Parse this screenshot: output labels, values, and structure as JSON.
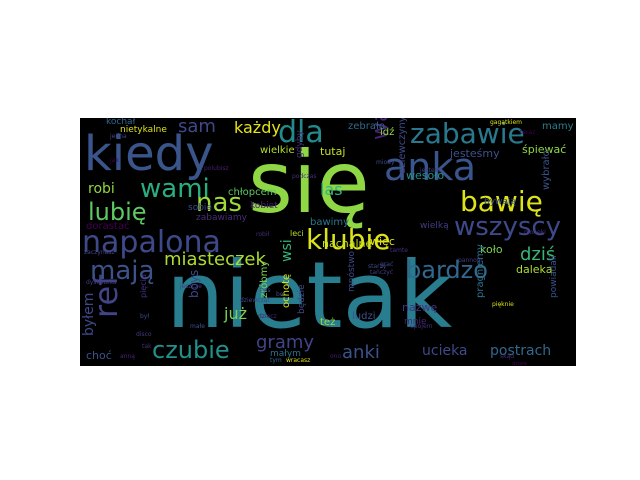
{
  "words": [
    {
      "text": "się",
      "color": "#8fd744"
    },
    {
      "text": "nietak",
      "color": "#287d8e"
    },
    {
      "text": "kiedy",
      "color": "#3a548c"
    },
    {
      "text": "napalona",
      "color": "#3e4989"
    },
    {
      "text": "anka",
      "color": "#3a548c"
    },
    {
      "text": "zabawie",
      "color": "#2a788e"
    },
    {
      "text": "dla",
      "color": "#238a8d"
    },
    {
      "text": "wami",
      "color": "#29af7f"
    },
    {
      "text": "bawię",
      "color": "#dde318"
    },
    {
      "text": "klubie",
      "color": "#dce319"
    },
    {
      "text": "wszyscy",
      "color": "#3e4989"
    },
    {
      "text": "lubię",
      "color": "#5ec962"
    },
    {
      "text": "nas",
      "color": "#a0da39"
    },
    {
      "text": "ref",
      "color": "#414487"
    },
    {
      "text": "mają",
      "color": "#3b528b"
    },
    {
      "text": "miasteczek",
      "color": "#addc30"
    },
    {
      "text": "was",
      "color": "#482475"
    },
    {
      "text": "bardzo",
      "color": "#31688e"
    },
    {
      "text": "czubie",
      "color": "#21918c"
    },
    {
      "text": "sam",
      "color": "#3e4989"
    },
    {
      "text": "każdy",
      "color": "#e5e419"
    },
    {
      "text": "robi",
      "color": "#8fd744"
    },
    {
      "text": "las",
      "color": "#31b57b"
    },
    {
      "text": "chłopcem",
      "color": "#5ec962"
    },
    {
      "text": "dziś",
      "color": "#35b779"
    },
    {
      "text": "byłem",
      "color": "#3e4989"
    },
    {
      "text": "już",
      "color": "#7ad151"
    },
    {
      "text": "gramy",
      "color": "#414487"
    },
    {
      "text": "anki",
      "color": "#3b528b"
    },
    {
      "text": "ucieka",
      "color": "#3e4989"
    },
    {
      "text": "postrach",
      "color": "#31688e"
    },
    {
      "text": "nachalne",
      "color": "#c2df23"
    },
    {
      "text": "wielkie",
      "color": "#b5de2b"
    },
    {
      "text": "tutaj",
      "color": "#c8e020"
    },
    {
      "text": "jesteśmy",
      "color": "#3b528b"
    },
    {
      "text": "śpiewać",
      "color": "#8fd744"
    },
    {
      "text": "mamy",
      "color": "#277f8e"
    },
    {
      "text": "wesoło",
      "color": "#21918c"
    },
    {
      "text": "więc",
      "color": "#dde318"
    },
    {
      "text": "koło",
      "color": "#7ad151"
    },
    {
      "text": "nazwę",
      "color": "#46327e"
    },
    {
      "text": "daleka",
      "color": "#addc30"
    },
    {
      "text": "wsi",
      "color": "#35b779"
    },
    {
      "text": "boys",
      "color": "#3e4989"
    },
    {
      "text": "choć",
      "color": "#3b528b"
    },
    {
      "text": "nietykalne",
      "color": "#dde318"
    },
    {
      "text": "kochał",
      "color": "#31688e"
    },
    {
      "text": "dorastać",
      "color": "#440154"
    },
    {
      "text": "bawimy",
      "color": "#2a788e"
    },
    {
      "text": "kobiet",
      "color": "#481f70"
    },
    {
      "text": "bywają",
      "color": "#3b528b"
    },
    {
      "text": "wielką",
      "color": "#433d84"
    },
    {
      "text": "zabawiamy",
      "color": "#472d7b"
    },
    {
      "text": "sobie",
      "color": "#3e4989"
    },
    {
      "text": "zebrało",
      "color": "#31688e"
    },
    {
      "text": "idź",
      "color": "#8fd744"
    },
    {
      "text": "dziewczyny",
      "color": "#3e4989"
    },
    {
      "text": "wybrało",
      "color": "#3b528b"
    },
    {
      "text": "gdyby",
      "color": "#472d7b"
    },
    {
      "text": "zróbmy",
      "color": "#7ad151"
    },
    {
      "text": "ochotę",
      "color": "#d8e219"
    },
    {
      "text": "będzie",
      "color": "#3e4989"
    },
    {
      "text": "ludzi",
      "color": "#3b528b"
    },
    {
      "text": "mnóstwo",
      "color": "#3e4989"
    },
    {
      "text": "pragniemy",
      "color": "#2c728e"
    },
    {
      "text": "mnie",
      "color": "#482475"
    },
    {
      "text": "powiadali",
      "color": "#3b528b"
    },
    {
      "text": "małym",
      "color": "#2c728e"
    },
    {
      "text": "też",
      "color": "#a0da39"
    },
    {
      "text": "pięciu",
      "color": "#46327e"
    },
    {
      "text": "jedna",
      "color": "#414487"
    },
    {
      "text": "zaczynasz",
      "color": "#404688"
    },
    {
      "text": "dyskoteka",
      "color": "#433d84"
    },
    {
      "text": "teraz",
      "color": "#440154"
    },
    {
      "text": "gagatkiem",
      "color": "#dde318"
    },
    {
      "text": "miody",
      "color": "#3e4989"
    },
    {
      "text": "jestem",
      "color": "#433d84"
    },
    {
      "text": "robił",
      "color": "#472d7b"
    },
    {
      "text": "leci",
      "color": "#b5de2b"
    },
    {
      "text": "grać",
      "color": "#3e4989"
    },
    {
      "text": "tańczyć",
      "color": "#433d84"
    },
    {
      "text": "tamte",
      "color": "#472d7b"
    },
    {
      "text": "dziewcząt",
      "color": "#3e4989"
    },
    {
      "text": "pięknie",
      "color": "#dde318"
    },
    {
      "text": "pioneki",
      "color": "#46327e"
    },
    {
      "text": "działa",
      "color": "#440154"
    },
    {
      "text": "anną",
      "color": "#482475"
    },
    {
      "text": "disco",
      "color": "#443983"
    },
    {
      "text": "tak",
      "color": "#472d7b"
    },
    {
      "text": "tym",
      "color": "#31688e"
    },
    {
      "text": "wracasz",
      "color": "#dde318"
    },
    {
      "text": "skąd",
      "color": "#472d7b"
    },
    {
      "text": "ono",
      "color": "#481f70"
    },
    {
      "text": "starzy",
      "color": "#3e4989"
    },
    {
      "text": "polubisz",
      "color": "#481f70"
    },
    {
      "text": "upojem",
      "color": "#472d7b"
    },
    {
      "text": "pannom",
      "color": "#433d84"
    },
    {
      "text": "bo",
      "color": "#3e4989"
    },
    {
      "text": "małe",
      "color": "#3b528b"
    },
    {
      "text": "dziecz",
      "color": "#481f70"
    },
    {
      "text": "jak",
      "color": "#440154"
    },
    {
      "text": "był",
      "color": "#3e4989"
    },
    {
      "text": "podczas",
      "color": "#472d7b"
    },
    {
      "text": "jeszcze",
      "color": "#433d84"
    },
    {
      "text": "nas",
      "color": "#3e4989"
    }
  ]
}
